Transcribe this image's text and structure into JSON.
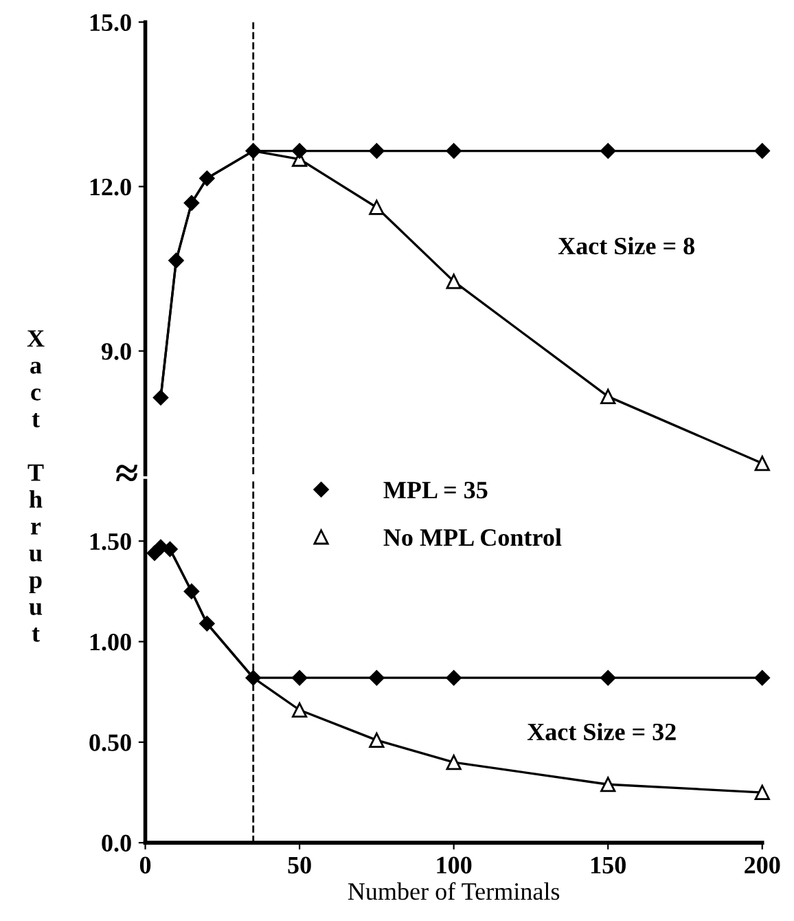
{
  "chart_data": [
    {
      "type": "line",
      "ylabel": "Xact Thruput",
      "xlim": [
        0,
        200
      ],
      "ylim": [
        6.75,
        15.0
      ],
      "yticks": [
        {
          "value": 9,
          "label": "9.0"
        },
        {
          "value": 12,
          "label": "12.0"
        },
        {
          "value": 15,
          "label": "15.0"
        }
      ],
      "tick_labels": "y",
      "grid": false,
      "legend": "bottom",
      "annotations": [
        "Xact Size = 8"
      ],
      "ref_lines": [
        {
          "axis": "x",
          "value": 35,
          "label": null,
          "line_style": "dashed",
          "color": "#000000"
        }
      ],
      "series": [
        {
          "name": "MPL = 35",
          "color": "#000000",
          "marker": "diamond",
          "x": [
            5,
            10,
            15,
            20,
            35,
            50,
            75,
            100,
            150,
            200
          ],
          "values": [
            8.15,
            10.65,
            11.7,
            12.15,
            12.65,
            12.65,
            12.65,
            12.65,
            12.65,
            12.65
          ]
        },
        {
          "name": "No MPL Control",
          "color": "#000000",
          "marker": "triangle",
          "x": [
            5,
            10,
            15,
            20,
            35,
            50,
            75,
            100,
            150,
            200
          ],
          "values": [
            8.15,
            10.65,
            11.7,
            12.15,
            12.65,
            12.5,
            11.62,
            10.27,
            8.17,
            6.95
          ]
        }
      ]
    },
    {
      "type": "line",
      "xlabel": "Number of Terminals",
      "xlim": [
        0,
        200
      ],
      "xticks": [
        0,
        50,
        100,
        150,
        200
      ],
      "ylim": [
        0,
        1.8
      ],
      "yticks": [
        {
          "value": 0,
          "label": "0.0"
        },
        {
          "value": 0.5,
          "label": "0.50"
        },
        {
          "value": 1.0,
          "label": "1.00"
        },
        {
          "value": 1.5,
          "label": "1.50"
        }
      ],
      "grid": false,
      "annotations": [
        "Xact Size = 32",
        "≈"
      ],
      "ref_lines": [
        {
          "axis": "x",
          "value": 35,
          "label": null,
          "line_style": "dashed",
          "color": "#000000"
        }
      ],
      "series": [
        {
          "color": "#000000",
          "marker": "diamond",
          "x": [
            3,
            5,
            8,
            15,
            20,
            35,
            50,
            75,
            100,
            150,
            200
          ],
          "values": [
            1.44,
            1.47,
            1.46,
            1.25,
            1.09,
            0.82,
            0.82,
            0.82,
            0.82,
            0.82,
            0.82
          ]
        },
        {
          "color": "#000000",
          "x": [
            3,
            5,
            8,
            15,
            20,
            35,
            50,
            75,
            100,
            150,
            200
          ],
          "values": [
            1.44,
            1.47,
            1.46,
            1.25,
            1.09,
            0.82,
            0.66,
            0.51,
            0.4,
            0.29,
            0.25
          ]
        }
      ]
    }
  ]
}
